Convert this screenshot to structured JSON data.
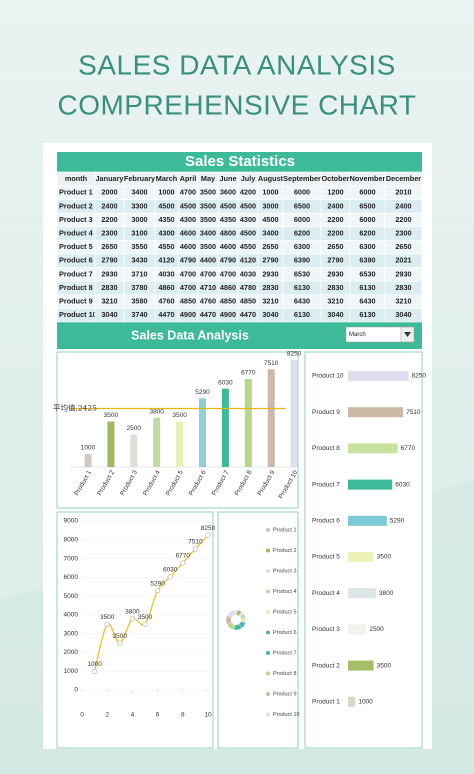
{
  "header": {
    "title_line1": "SALES DATA ANALYSIS",
    "title_line2": "COMPREHENSIVE CHART"
  },
  "table": {
    "title": "Sales Statistics",
    "columns": [
      "month",
      "January",
      "February",
      "March",
      "April",
      "May",
      "June",
      "July",
      "August",
      "September",
      "October",
      "November",
      "December"
    ],
    "rows": [
      [
        "Product 1",
        2000,
        3400,
        1000,
        4700,
        3500,
        3600,
        4200,
        1000,
        6000,
        1200,
        6000,
        2010
      ],
      [
        "Product 2",
        2400,
        3300,
        4500,
        4500,
        3500,
        4500,
        4500,
        3000,
        6500,
        2400,
        6500,
        2400
      ],
      [
        "Product 3",
        2200,
        3000,
        4350,
        4300,
        3500,
        4350,
        4300,
        4500,
        6000,
        2200,
        6000,
        2200
      ],
      [
        "Product 4",
        2300,
        3100,
        4300,
        4600,
        3400,
        4800,
        4500,
        3400,
        6200,
        2200,
        6200,
        2300
      ],
      [
        "Product 5",
        2650,
        3550,
        4550,
        4600,
        3500,
        4600,
        4550,
        2650,
        6300,
        2650,
        6300,
        2650
      ],
      [
        "Product 6",
        2790,
        3430,
        4120,
        4790,
        4400,
        4790,
        4120,
        2790,
        6390,
        2790,
        6390,
        2021
      ],
      [
        "Product 7",
        2930,
        3710,
        4030,
        4700,
        4700,
        4700,
        4030,
        2930,
        6530,
        2930,
        6530,
        2930
      ],
      [
        "Product 8",
        2830,
        3780,
        4860,
        4700,
        4710,
        4860,
        4780,
        2830,
        6130,
        2830,
        6130,
        2830
      ],
      [
        "Product 9",
        3210,
        3580,
        4760,
        4850,
        4760,
        4850,
        4850,
        3210,
        6430,
        3210,
        6430,
        3210
      ],
      [
        "Product 10",
        3040,
        3740,
        4470,
        4900,
        4470,
        4900,
        4470,
        3040,
        6130,
        3040,
        6130,
        3040
      ]
    ]
  },
  "section_title": "Sales Data Analysis",
  "dropdown": "March",
  "chart_data": [
    {
      "type": "bar",
      "categories": [
        "Product 1",
        "Product 2",
        "Product 3",
        "Product 4",
        "Product 5",
        "Product 6",
        "Product 7",
        "Product 8",
        "Product 9",
        "Product 10"
      ],
      "values": [
        1000,
        3500,
        2500,
        3800,
        3500,
        5290,
        6030,
        6770,
        7510,
        8250
      ],
      "colors": [
        "#cfcbbd",
        "#9dba5e",
        "#dedfd6",
        "#bcdca3",
        "#e6efb4",
        "#8ecfd9",
        "#3dbb98",
        "#b5d98a",
        "#cdb9a8",
        "#dde0ec"
      ],
      "ylim": [
        0,
        9000
      ],
      "reference_line": 4500,
      "reference_color": "#e8b818",
      "annotation": "平均值,2425"
    },
    {
      "type": "barh",
      "categories": [
        "Product 1",
        "Product 2",
        "Product 3",
        "Product 4",
        "Product 5",
        "Product 6",
        "Product 7",
        "Product 8",
        "Product 9",
        "Product 10"
      ],
      "values": [
        1000,
        3500,
        2500,
        3800,
        3500,
        5290,
        6030,
        6770,
        7510,
        8250
      ],
      "colors": [
        "#dcd6c4",
        "#a6bf66",
        "#f1f1ee",
        "#dde6e6",
        "#eef2b8",
        "#7dc9d6",
        "#3dbb98",
        "#c8e3a0",
        "#cdb9a8",
        "#dde0ec"
      ],
      "xlim": [
        0,
        9000
      ]
    },
    {
      "type": "line",
      "x": [
        1,
        2,
        3,
        4,
        5,
        6,
        7,
        8,
        9,
        10
      ],
      "values": [
        1000,
        3500,
        2500,
        3800,
        3500,
        5290,
        6030,
        6770,
        7510,
        8250
      ],
      "color": "#f0c419",
      "xlim": [
        0,
        10
      ],
      "xticks": [
        0,
        2,
        4,
        6,
        8,
        10
      ],
      "ylim": [
        0,
        9000
      ],
      "yticks": [
        0,
        1000,
        2000,
        3000,
        4000,
        5000,
        6000,
        7000,
        8000,
        9000
      ]
    },
    {
      "type": "pie",
      "categories": [
        "Product 1",
        "Product 2",
        "Product 3",
        "Product 4",
        "Product 5",
        "Product 6",
        "Product 7",
        "Product 8",
        "Product 9",
        "Product 10"
      ],
      "values": [
        1000,
        3500,
        2500,
        3800,
        3500,
        5290,
        6030,
        6770,
        7510,
        8250
      ],
      "colors": [
        "#c9c6c0",
        "#9dba5e",
        "#dedfd6",
        "#bcdca3",
        "#e6efb4",
        "#5aa9c9",
        "#3dbb98",
        "#b5d98a",
        "#cdb9a8",
        "#dde0ec"
      ]
    }
  ]
}
